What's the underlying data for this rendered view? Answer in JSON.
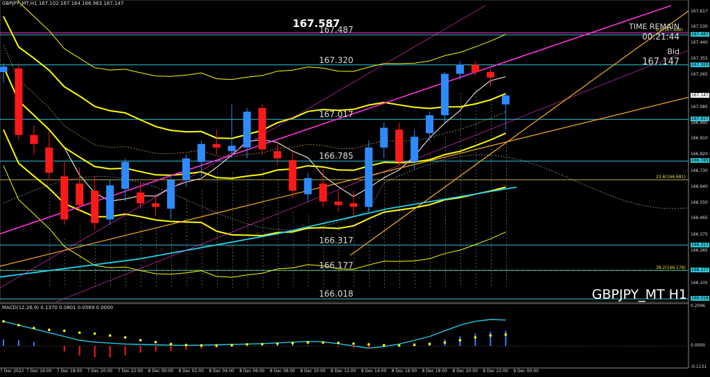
{
  "header": {
    "info": "GBPJPY_MT,H1  167.102 167.164 166.963 167.147"
  },
  "macd_header": "MACD(12,26,9) 0.1370 0.0801 0.0569 0.0000",
  "big_price": "167.587",
  "levels": [
    {
      "label": "167.487",
      "price": 167.487
    },
    {
      "label": "167.320",
      "price": 167.32
    },
    {
      "label": "167.017",
      "price": 167.017
    },
    {
      "label": "166.785",
      "price": 166.785
    },
    {
      "label": "166.317",
      "price": 166.317
    },
    {
      "label": "166.177",
      "price": 166.177
    },
    {
      "label": "166.018",
      "price": 166.018
    }
  ],
  "time_remain": {
    "label": "TIME REMAIN",
    "value": "00:21:44"
  },
  "bid": {
    "label": "Bid",
    "value": "167.147"
  },
  "symbol": "GBPJPY_MT H1",
  "fibo_labels": [
    {
      "text": "0.0(167.498)",
      "price": 167.498
    },
    {
      "text": "23.6(166.681)",
      "price": 166.681
    },
    {
      "text": "38.2(166.176)",
      "price": 166.176
    }
  ],
  "y_axis": [
    {
      "label": "167.617",
      "price": 167.617,
      "tag": ""
    },
    {
      "label": "167.530",
      "price": 167.53,
      "tag": ""
    },
    {
      "label": "167.487",
      "price": 167.487,
      "tag": "cyan"
    },
    {
      "label": "167.440",
      "price": 167.44,
      "tag": ""
    },
    {
      "label": "167.355",
      "price": 167.355,
      "tag": ""
    },
    {
      "label": "167.320",
      "price": 167.32,
      "tag": "cyan"
    },
    {
      "label": "167.265",
      "price": 167.265,
      "tag": ""
    },
    {
      "label": "167.147",
      "price": 167.147,
      "tag": "white"
    },
    {
      "label": "167.085",
      "price": 167.085,
      "tag": ""
    },
    {
      "label": "167.017",
      "price": 167.017,
      "tag": "cyan"
    },
    {
      "label": "166.995",
      "price": 166.995,
      "tag": ""
    },
    {
      "label": "166.910",
      "price": 166.91,
      "tag": ""
    },
    {
      "label": "166.820",
      "price": 166.82,
      "tag": ""
    },
    {
      "label": "166.785",
      "price": 166.785,
      "tag": "cyan"
    },
    {
      "label": "166.730",
      "price": 166.73,
      "tag": ""
    },
    {
      "label": "166.640",
      "price": 166.64,
      "tag": ""
    },
    {
      "label": "166.550",
      "price": 166.55,
      "tag": ""
    },
    {
      "label": "166.465",
      "price": 166.465,
      "tag": ""
    },
    {
      "label": "166.375",
      "price": 166.375,
      "tag": ""
    },
    {
      "label": "166.317",
      "price": 166.317,
      "tag": "cyan"
    },
    {
      "label": "166.285",
      "price": 166.285,
      "tag": ""
    },
    {
      "label": "166.177",
      "price": 166.177,
      "tag": "cyan"
    },
    {
      "label": "166.105",
      "price": 166.105,
      "tag": ""
    },
    {
      "label": "166.018",
      "price": 166.018,
      "tag": "cyan"
    }
  ],
  "macd_axis": [
    {
      "label": "0.2096",
      "value": 0.2096
    },
    {
      "label": "0.0000",
      "value": 0.0
    },
    {
      "label": "-0.1131",
      "value": -0.1131
    }
  ],
  "x_axis": [
    "7 Dec 2022",
    "7 Dec 16:00",
    "7 Dec 18:00",
    "7 Dec 20:00",
    "7 Dec 22:00",
    "8 Dec 00:00",
    "8 Dec 02:00",
    "8 Dec 04:00",
    "8 Dec 06:00",
    "8 Dec 08:00",
    "8 Dec 10:00",
    "8 Dec 12:00",
    "8 Dec 14:00",
    "8 Dec 16:00",
    "8 Dec 18:00",
    "8 Dec 20:00",
    "8 Dec 22:00",
    "9 Dec 00:00"
  ],
  "colors": {
    "bull": "#2e8bff",
    "bear": "#ff1a1a",
    "level": "#2ec4d6",
    "bands": "#ffff00",
    "trend": "#ff33dd",
    "fan": "#ffb020",
    "ma_white": "#e8d8d0",
    "ma_cyan": "#22d0e8",
    "macd_line": "#22c8e0",
    "macd_signal": "#ffff00",
    "macd_hist_pos": "#3a7fff",
    "macd_hist_neg": "#ff1a1a"
  },
  "chart_data": {
    "type": "candlestick",
    "symbol": "GBPJPY_MT",
    "timeframe": "H1",
    "ylim": [
      166.0,
      167.65
    ],
    "candles": [
      {
        "o": 167.28,
        "h": 167.33,
        "l": 167.22,
        "c": 167.31
      },
      {
        "o": 167.3,
        "h": 167.33,
        "l": 166.9,
        "c": 166.93
      },
      {
        "o": 166.93,
        "h": 166.98,
        "l": 166.82,
        "c": 166.88
      },
      {
        "o": 166.86,
        "h": 166.95,
        "l": 166.68,
        "c": 166.72
      },
      {
        "o": 166.7,
        "h": 166.78,
        "l": 166.43,
        "c": 166.46
      },
      {
        "o": 166.66,
        "h": 166.75,
        "l": 166.5,
        "c": 166.54
      },
      {
        "o": 166.62,
        "h": 166.7,
        "l": 166.4,
        "c": 166.44
      },
      {
        "o": 166.46,
        "h": 166.68,
        "l": 166.43,
        "c": 166.65
      },
      {
        "o": 166.63,
        "h": 166.8,
        "l": 166.56,
        "c": 166.78
      },
      {
        "o": 166.61,
        "h": 166.67,
        "l": 166.52,
        "c": 166.55
      },
      {
        "o": 166.55,
        "h": 166.6,
        "l": 166.48,
        "c": 166.53
      },
      {
        "o": 166.52,
        "h": 166.7,
        "l": 166.46,
        "c": 166.68
      },
      {
        "o": 166.68,
        "h": 166.82,
        "l": 166.64,
        "c": 166.8
      },
      {
        "o": 166.78,
        "h": 166.9,
        "l": 166.7,
        "c": 166.88
      },
      {
        "o": 166.88,
        "h": 166.96,
        "l": 166.82,
        "c": 166.86
      },
      {
        "o": 166.84,
        "h": 167.1,
        "l": 166.8,
        "c": 166.87
      },
      {
        "o": 166.86,
        "h": 167.08,
        "l": 166.8,
        "c": 167.06
      },
      {
        "o": 167.08,
        "h": 167.1,
        "l": 166.82,
        "c": 166.85
      },
      {
        "o": 166.84,
        "h": 166.9,
        "l": 166.76,
        "c": 166.8
      },
      {
        "o": 166.79,
        "h": 166.84,
        "l": 166.58,
        "c": 166.62
      },
      {
        "o": 166.6,
        "h": 166.72,
        "l": 166.56,
        "c": 166.69
      },
      {
        "o": 166.66,
        "h": 166.74,
        "l": 166.53,
        "c": 166.56
      },
      {
        "o": 166.56,
        "h": 166.62,
        "l": 166.5,
        "c": 166.54
      },
      {
        "o": 166.55,
        "h": 166.62,
        "l": 166.48,
        "c": 166.53
      },
      {
        "o": 166.53,
        "h": 166.9,
        "l": 166.5,
        "c": 166.86
      },
      {
        "o": 166.86,
        "h": 167.0,
        "l": 166.8,
        "c": 166.97
      },
      {
        "o": 166.96,
        "h": 167.0,
        "l": 166.76,
        "c": 166.78
      },
      {
        "o": 166.78,
        "h": 166.96,
        "l": 166.74,
        "c": 166.92
      },
      {
        "o": 166.94,
        "h": 167.06,
        "l": 166.9,
        "c": 167.04
      },
      {
        "o": 167.04,
        "h": 167.28,
        "l": 167.0,
        "c": 167.27
      },
      {
        "o": 167.27,
        "h": 167.34,
        "l": 167.24,
        "c": 167.32
      },
      {
        "o": 167.32,
        "h": 167.34,
        "l": 167.26,
        "c": 167.28
      },
      {
        "o": 167.28,
        "h": 167.3,
        "l": 167.2,
        "c": 167.25
      },
      {
        "o": 167.1,
        "h": 167.16,
        "l": 166.96,
        "c": 167.15
      }
    ],
    "macd": {
      "hist": [
        0.035,
        0.03,
        0.02,
        0.0,
        -0.03,
        -0.05,
        -0.06,
        -0.06,
        -0.05,
        -0.035,
        -0.03,
        -0.025,
        -0.02,
        -0.015,
        -0.01,
        -0.005,
        0.0,
        0.005,
        0.01,
        0.008,
        0.004,
        0.0,
        -0.005,
        -0.01,
        -0.015,
        0.0,
        0.01,
        0.015,
        0.02,
        0.035,
        0.05,
        0.065,
        0.075,
        0.08
      ],
      "signal": [
        0.13,
        0.11,
        0.095,
        0.085,
        0.08,
        0.07,
        0.065,
        0.055,
        0.045,
        0.03,
        0.02,
        0.01,
        0.005,
        0.003,
        0.002,
        0.004,
        0.008,
        0.01,
        0.012,
        0.015,
        0.018,
        0.018,
        0.016,
        0.012,
        0.008,
        0.004,
        0.002,
        0.005,
        0.01,
        0.018,
        0.03,
        0.045,
        0.055,
        0.06
      ],
      "macd": [
        0.13,
        0.11,
        0.09,
        0.07,
        0.05,
        0.03,
        0.02,
        0.015,
        0.01,
        0.008,
        0.006,
        0.004,
        0.003,
        0.004,
        0.006,
        0.008,
        0.01,
        0.012,
        0.016,
        0.02,
        0.024,
        0.022,
        0.012,
        0.0,
        -0.012,
        -0.004,
        0.01,
        0.03,
        0.05,
        0.08,
        0.11,
        0.13,
        0.14,
        0.137
      ]
    }
  }
}
